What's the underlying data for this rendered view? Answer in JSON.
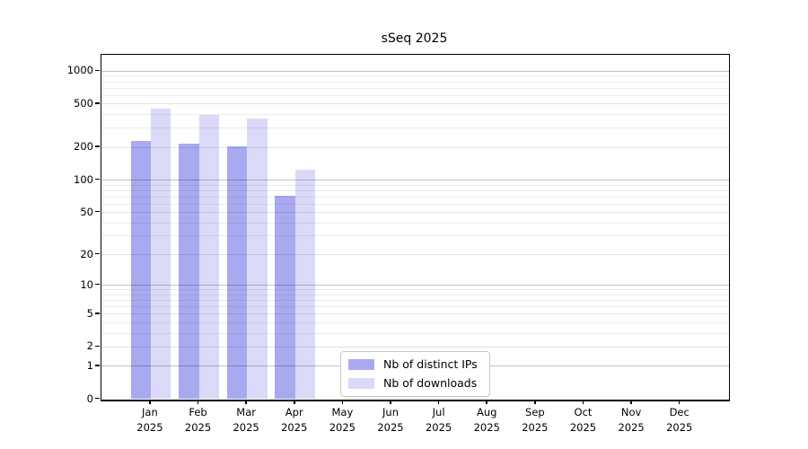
{
  "title": "sSeq 2025",
  "chart_data": {
    "type": "bar",
    "title": "sSeq 2025",
    "x_categories": [
      "Jan 2025",
      "Feb 2025",
      "Mar 2025",
      "Apr 2025",
      "May 2025",
      "Jun 2025",
      "Jul 2025",
      "Aug 2025",
      "Sep 2025",
      "Oct 2025",
      "Nov 2025",
      "Dec 2025"
    ],
    "months": [
      "Jan",
      "Feb",
      "Mar",
      "Apr",
      "May",
      "Jun",
      "Jul",
      "Aug",
      "Sep",
      "Oct",
      "Nov",
      "Dec"
    ],
    "year": "2025",
    "series": [
      {
        "name": "Nb of distinct IPs",
        "color": "#a9a9f0",
        "values": [
          229,
          218,
          203,
          71,
          null,
          null,
          null,
          null,
          null,
          null,
          null,
          null
        ]
      },
      {
        "name": "Nb of downloads",
        "color": "#dadaf8",
        "values": [
          454,
          395,
          369,
          124,
          null,
          null,
          null,
          null,
          null,
          null,
          null,
          null
        ]
      }
    ],
    "y_scale": "log10(value+1)",
    "y_ticks": [
      0,
      1,
      2,
      5,
      10,
      20,
      50,
      100,
      200,
      500,
      1000
    ],
    "y_decade_ticks": [
      1,
      10,
      100,
      1000
    ],
    "ylim": [
      0,
      1420
    ],
    "xlabel": "",
    "ylabel": "",
    "grid": "both",
    "legend_position": "lower-center",
    "background": "#ffffff"
  },
  "colors": {
    "bar_ips": "#a9a9f0",
    "bar_downloads": "#dadaf8",
    "grid_major": "rgba(0,0,0,0.235)",
    "grid_sub": "rgba(0,0,0,0.11)",
    "grid_minor": "rgba(0,0,0,0.075)",
    "spine": "#000000",
    "text": "#000000",
    "legend_border": "#c8c8c8"
  }
}
